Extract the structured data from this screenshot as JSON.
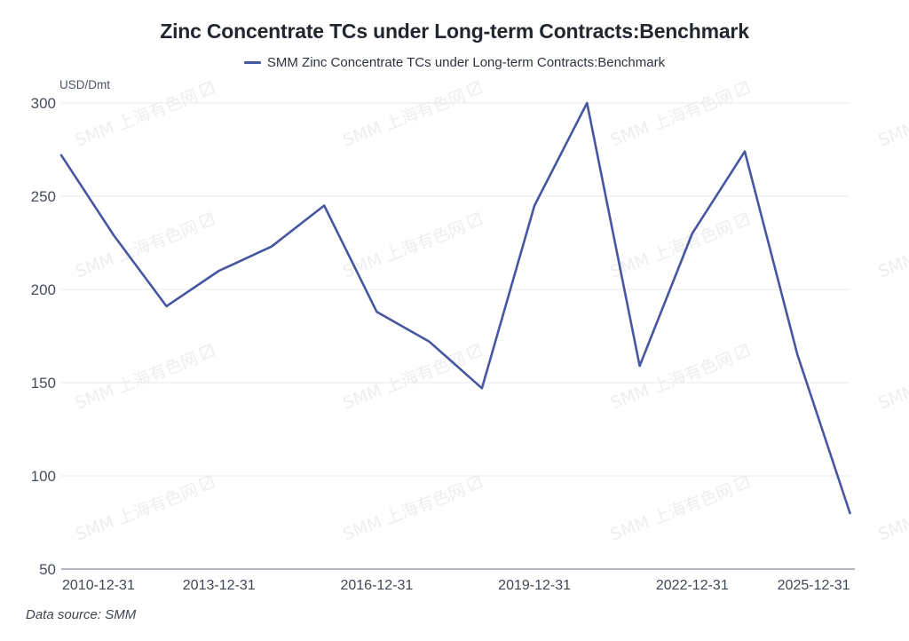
{
  "page": {
    "title": "Zinc Concentrate TCs under Long-term Contracts:Benchmark",
    "footer": "Data source:  SMM",
    "watermark_text": "SMM 上海有色网"
  },
  "legend": {
    "label": "SMM Zinc Concentrate TCs under Long-term Contracts:Benchmark",
    "color": "#4656a0"
  },
  "chart_data": {
    "type": "line",
    "title": "Zinc Concentrate TCs under Long-term Contracts:Benchmark",
    "series_name": "SMM Zinc Concentrate TCs under Long-term Contracts:Benchmark",
    "unit_label": "USD/Dmt",
    "categories": [
      "2010-12-31",
      "2011-12-31",
      "2012-12-31",
      "2013-12-31",
      "2014-12-31",
      "2015-12-31",
      "2016-12-31",
      "2017-12-31",
      "2018-12-31",
      "2019-12-31",
      "2020-12-31",
      "2021-12-31",
      "2022-12-31",
      "2023-12-31",
      "2024-12-31",
      "2025-12-31"
    ],
    "values": [
      272,
      229,
      191,
      210,
      223,
      245,
      188,
      172,
      147,
      245,
      300,
      159,
      230,
      274,
      165,
      80
    ],
    "x_ticks_shown": [
      "2010-12-31",
      "2013-12-31",
      "2016-12-31",
      "2019-12-31",
      "2022-12-31",
      "2025-12-31"
    ],
    "x_tick_indices": [
      0,
      3,
      6,
      9,
      12,
      15
    ],
    "ylim": [
      50,
      300
    ],
    "yticks": [
      50,
      100,
      150,
      200,
      250,
      300
    ],
    "grid": true,
    "legend_position": "top",
    "line_color": "#4656a0",
    "grid_color": "#e9eaef",
    "axis_line_color": "#6a7180",
    "tick_label_color": "#454e5c"
  }
}
